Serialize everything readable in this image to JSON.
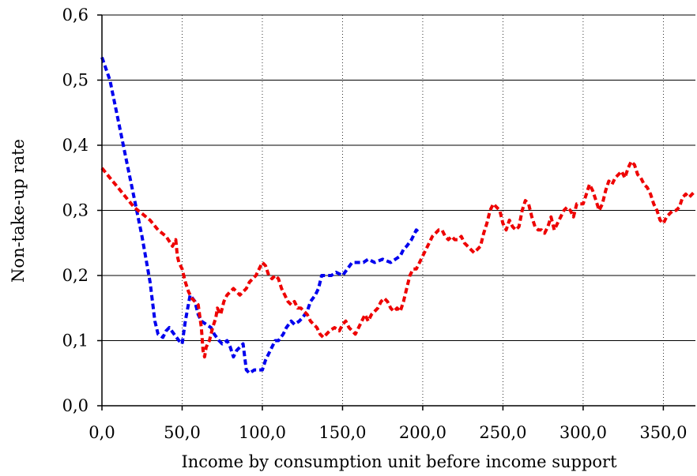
{
  "chart_data": {
    "type": "line",
    "title": "",
    "xlabel": "Income by consumption unit before income support",
    "ylabel": "Non-take-up rate",
    "xlim": [
      0,
      370
    ],
    "ylim": [
      0,
      0.6
    ],
    "x_ticks": [
      0,
      50,
      100,
      150,
      200,
      250,
      300,
      350
    ],
    "x_tick_labels": [
      "0,0",
      "50,0",
      "100,0",
      "150,0",
      "200,0",
      "250,0",
      "300,0",
      "350,0"
    ],
    "y_ticks": [
      0,
      0.1,
      0.2,
      0.3,
      0.4,
      0.5,
      0.6
    ],
    "y_tick_labels": [
      "0,0",
      "0,1",
      "0,2",
      "0,3",
      "0,4",
      "0,5",
      "0,6"
    ],
    "grid": {
      "horizontal": "solid",
      "vertical": "dotted"
    },
    "legend": "none",
    "series": [
      {
        "color": "#0000ee",
        "style": "dashed",
        "points": [
          [
            0,
            0.535
          ],
          [
            5,
            0.5
          ],
          [
            10,
            0.44
          ],
          [
            15,
            0.38
          ],
          [
            20,
            0.32
          ],
          [
            25,
            0.26
          ],
          [
            30,
            0.19
          ],
          [
            33,
            0.13
          ],
          [
            35,
            0.11
          ],
          [
            38,
            0.105
          ],
          [
            40,
            0.115
          ],
          [
            42,
            0.12
          ],
          [
            45,
            0.11
          ],
          [
            48,
            0.1
          ],
          [
            50,
            0.095
          ],
          [
            52,
            0.13
          ],
          [
            55,
            0.17
          ],
          [
            58,
            0.16
          ],
          [
            60,
            0.14
          ],
          [
            62,
            0.13
          ],
          [
            65,
            0.125
          ],
          [
            68,
            0.12
          ],
          [
            70,
            0.11
          ],
          [
            73,
            0.1
          ],
          [
            75,
            0.095
          ],
          [
            78,
            0.1
          ],
          [
            80,
            0.09
          ],
          [
            82,
            0.075
          ],
          [
            84,
            0.085
          ],
          [
            86,
            0.09
          ],
          [
            88,
            0.095
          ],
          [
            90,
            0.055
          ],
          [
            92,
            0.05
          ],
          [
            95,
            0.055
          ],
          [
            98,
            0.055
          ],
          [
            100,
            0.055
          ],
          [
            102,
            0.07
          ],
          [
            105,
            0.085
          ],
          [
            108,
            0.1
          ],
          [
            110,
            0.1
          ],
          [
            113,
            0.11
          ],
          [
            115,
            0.12
          ],
          [
            118,
            0.13
          ],
          [
            120,
            0.125
          ],
          [
            123,
            0.13
          ],
          [
            125,
            0.135
          ],
          [
            128,
            0.145
          ],
          [
            130,
            0.16
          ],
          [
            133,
            0.17
          ],
          [
            135,
            0.18
          ],
          [
            137,
            0.2
          ],
          [
            140,
            0.2
          ],
          [
            143,
            0.2
          ],
          [
            146,
            0.205
          ],
          [
            150,
            0.2
          ],
          [
            153,
            0.21
          ],
          [
            156,
            0.22
          ],
          [
            160,
            0.22
          ],
          [
            163,
            0.22
          ],
          [
            166,
            0.225
          ],
          [
            170,
            0.22
          ],
          [
            175,
            0.225
          ],
          [
            180,
            0.22
          ],
          [
            183,
            0.225
          ],
          [
            186,
            0.23
          ],
          [
            188,
            0.24
          ],
          [
            190,
            0.245
          ],
          [
            193,
            0.255
          ],
          [
            196,
            0.27
          ],
          [
            198,
            0.265
          ]
        ]
      },
      {
        "color": "#ee0000",
        "style": "dashed",
        "points": [
          [
            0,
            0.365
          ],
          [
            5,
            0.35
          ],
          [
            10,
            0.335
          ],
          [
            15,
            0.32
          ],
          [
            20,
            0.305
          ],
          [
            25,
            0.295
          ],
          [
            30,
            0.285
          ],
          [
            35,
            0.27
          ],
          [
            40,
            0.26
          ],
          [
            44,
            0.245
          ],
          [
            46,
            0.255
          ],
          [
            47,
            0.23
          ],
          [
            48,
            0.22
          ],
          [
            50,
            0.21
          ],
          [
            52,
            0.19
          ],
          [
            54,
            0.175
          ],
          [
            56,
            0.165
          ],
          [
            58,
            0.16
          ],
          [
            60,
            0.155
          ],
          [
            62,
            0.12
          ],
          [
            63,
            0.085
          ],
          [
            64,
            0.075
          ],
          [
            65,
            0.09
          ],
          [
            67,
            0.1
          ],
          [
            69,
            0.12
          ],
          [
            71,
            0.135
          ],
          [
            72,
            0.15
          ],
          [
            74,
            0.14
          ],
          [
            76,
            0.16
          ],
          [
            78,
            0.17
          ],
          [
            80,
            0.175
          ],
          [
            82,
            0.18
          ],
          [
            84,
            0.175
          ],
          [
            86,
            0.17
          ],
          [
            88,
            0.175
          ],
          [
            90,
            0.18
          ],
          [
            92,
            0.19
          ],
          [
            94,
            0.195
          ],
          [
            96,
            0.2
          ],
          [
            98,
            0.21
          ],
          [
            100,
            0.22
          ],
          [
            102,
            0.215
          ],
          [
            104,
            0.2
          ],
          [
            106,
            0.195
          ],
          [
            108,
            0.2
          ],
          [
            110,
            0.195
          ],
          [
            112,
            0.18
          ],
          [
            114,
            0.17
          ],
          [
            116,
            0.16
          ],
          [
            118,
            0.155
          ],
          [
            120,
            0.16
          ],
          [
            122,
            0.15
          ],
          [
            124,
            0.15
          ],
          [
            126,
            0.145
          ],
          [
            128,
            0.14
          ],
          [
            130,
            0.13
          ],
          [
            132,
            0.125
          ],
          [
            134,
            0.12
          ],
          [
            136,
            0.11
          ],
          [
            138,
            0.105
          ],
          [
            140,
            0.11
          ],
          [
            142,
            0.115
          ],
          [
            145,
            0.12
          ],
          [
            148,
            0.115
          ],
          [
            150,
            0.125
          ],
          [
            152,
            0.13
          ],
          [
            154,
            0.12
          ],
          [
            156,
            0.115
          ],
          [
            158,
            0.11
          ],
          [
            160,
            0.12
          ],
          [
            162,
            0.13
          ],
          [
            164,
            0.14
          ],
          [
            166,
            0.13
          ],
          [
            168,
            0.14
          ],
          [
            170,
            0.145
          ],
          [
            172,
            0.15
          ],
          [
            174,
            0.16
          ],
          [
            176,
            0.165
          ],
          [
            178,
            0.16
          ],
          [
            180,
            0.15
          ],
          [
            182,
            0.145
          ],
          [
            184,
            0.15
          ],
          [
            186,
            0.145
          ],
          [
            188,
            0.16
          ],
          [
            190,
            0.18
          ],
          [
            192,
            0.2
          ],
          [
            194,
            0.21
          ],
          [
            196,
            0.21
          ],
          [
            198,
            0.22
          ],
          [
            200,
            0.23
          ],
          [
            202,
            0.24
          ],
          [
            204,
            0.25
          ],
          [
            206,
            0.26
          ],
          [
            208,
            0.265
          ],
          [
            210,
            0.27
          ],
          [
            212,
            0.27
          ],
          [
            214,
            0.26
          ],
          [
            216,
            0.255
          ],
          [
            218,
            0.26
          ],
          [
            220,
            0.255
          ],
          [
            222,
            0.255
          ],
          [
            224,
            0.26
          ],
          [
            226,
            0.25
          ],
          [
            228,
            0.245
          ],
          [
            230,
            0.24
          ],
          [
            232,
            0.235
          ],
          [
            234,
            0.24
          ],
          [
            236,
            0.245
          ],
          [
            238,
            0.265
          ],
          [
            240,
            0.28
          ],
          [
            242,
            0.3
          ],
          [
            244,
            0.31
          ],
          [
            246,
            0.305
          ],
          [
            248,
            0.3
          ],
          [
            250,
            0.28
          ],
          [
            252,
            0.27
          ],
          [
            254,
            0.285
          ],
          [
            256,
            0.275
          ],
          [
            258,
            0.27
          ],
          [
            260,
            0.275
          ],
          [
            262,
            0.3
          ],
          [
            264,
            0.315
          ],
          [
            266,
            0.31
          ],
          [
            268,
            0.29
          ],
          [
            270,
            0.275
          ],
          [
            272,
            0.27
          ],
          [
            274,
            0.27
          ],
          [
            276,
            0.265
          ],
          [
            278,
            0.275
          ],
          [
            280,
            0.29
          ],
          [
            282,
            0.27
          ],
          [
            284,
            0.28
          ],
          [
            286,
            0.29
          ],
          [
            288,
            0.3
          ],
          [
            290,
            0.305
          ],
          [
            292,
            0.3
          ],
          [
            294,
            0.29
          ],
          [
            296,
            0.31
          ],
          [
            298,
            0.31
          ],
          [
            300,
            0.31
          ],
          [
            302,
            0.325
          ],
          [
            304,
            0.34
          ],
          [
            306,
            0.33
          ],
          [
            308,
            0.315
          ],
          [
            310,
            0.3
          ],
          [
            312,
            0.31
          ],
          [
            314,
            0.33
          ],
          [
            316,
            0.345
          ],
          [
            318,
            0.34
          ],
          [
            320,
            0.35
          ],
          [
            322,
            0.355
          ],
          [
            324,
            0.36
          ],
          [
            326,
            0.35
          ],
          [
            328,
            0.365
          ],
          [
            330,
            0.375
          ],
          [
            332,
            0.37
          ],
          [
            334,
            0.355
          ],
          [
            336,
            0.35
          ],
          [
            338,
            0.34
          ],
          [
            340,
            0.335
          ],
          [
            342,
            0.325
          ],
          [
            344,
            0.31
          ],
          [
            346,
            0.3
          ],
          [
            348,
            0.285
          ],
          [
            350,
            0.28
          ],
          [
            352,
            0.29
          ],
          [
            354,
            0.295
          ],
          [
            356,
            0.3
          ],
          [
            358,
            0.3
          ],
          [
            360,
            0.305
          ],
          [
            362,
            0.32
          ],
          [
            364,
            0.325
          ],
          [
            366,
            0.32
          ],
          [
            368,
            0.325
          ],
          [
            370,
            0.33
          ]
        ]
      }
    ]
  }
}
